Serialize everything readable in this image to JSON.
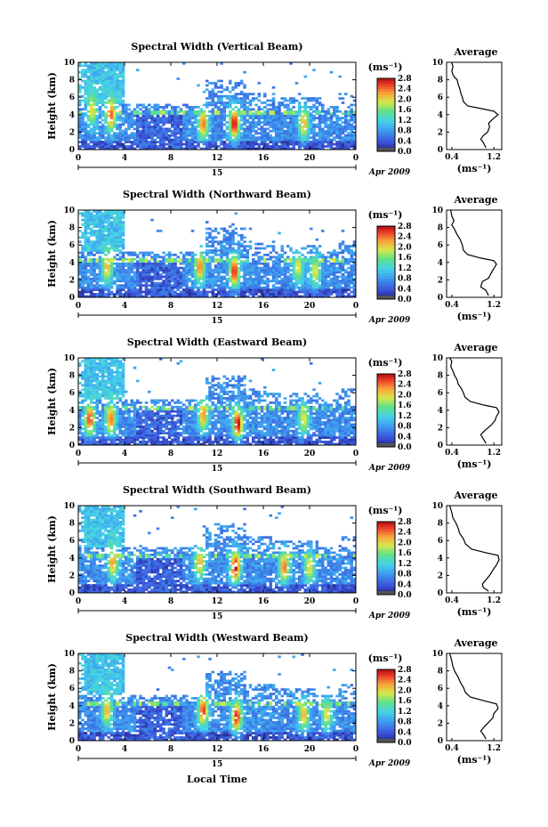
{
  "figure": {
    "xlabel": "Local Time",
    "date_label": "Apr 2009",
    "day_label": "15",
    "avg_title": "Average",
    "avg_xlabel": "(ms⁻¹)",
    "colorbar_unit": "(ms⁻¹)",
    "ylabel": "Height (km)"
  },
  "chart_data": [
    {
      "type": "heatmap",
      "title": "Spectral Width (Vertical Beam)",
      "xlabel": "Local Time",
      "ylabel": "Height (km)",
      "xlim": [
        0,
        24
      ],
      "ylim": [
        0,
        10
      ],
      "x_ticks": [
        "0",
        "4",
        "8",
        "12",
        "16",
        "20",
        "0"
      ],
      "y_ticks": [
        "0",
        "2",
        "4",
        "6",
        "8",
        "10"
      ],
      "colorbar": {
        "unit": "(ms⁻¹)",
        "range": [
          0.0,
          2.8
        ],
        "ticks": [
          "0.0",
          "0.4",
          "0.8",
          "1.2",
          "1.6",
          "2.0",
          "2.4",
          "2.8"
        ]
      },
      "hot_cores": [
        {
          "t": 2.8,
          "h": 4.0,
          "v": 2.5
        },
        {
          "t": 10.8,
          "h": 3.0,
          "v": 2.4
        },
        {
          "t": 13.5,
          "h": 3.0,
          "v": 2.8
        },
        {
          "t": 19.5,
          "h": 3.0,
          "v": 2.2
        },
        {
          "t": 1.2,
          "h": 4.5,
          "v": 2.0
        }
      ],
      "average_profile": {
        "title": "Average",
        "xlabel": "(ms⁻¹)",
        "x_ticks": [
          "0.4",
          "1.2"
        ],
        "xlim": [
          0.3,
          1.35
        ],
        "points": [
          [
            1.05,
            0.2
          ],
          [
            1.0,
            0.8
          ],
          [
            0.95,
            1.2
          ],
          [
            1.0,
            1.6
          ],
          [
            1.08,
            2.0
          ],
          [
            1.12,
            2.6
          ],
          [
            1.1,
            3.0
          ],
          [
            1.18,
            3.5
          ],
          [
            1.28,
            4.0
          ],
          [
            1.2,
            4.4
          ],
          [
            0.95,
            4.7
          ],
          [
            0.7,
            5.0
          ],
          [
            0.62,
            5.5
          ],
          [
            0.6,
            6.0
          ],
          [
            0.57,
            6.5
          ],
          [
            0.55,
            7.0
          ],
          [
            0.52,
            7.5
          ],
          [
            0.5,
            8.0
          ],
          [
            0.45,
            8.3
          ],
          [
            0.42,
            8.6
          ],
          [
            0.4,
            9.0
          ],
          [
            0.42,
            9.5
          ],
          [
            0.4,
            10.0
          ]
        ]
      }
    },
    {
      "type": "heatmap",
      "title": "Spectral Width (Northward Beam)",
      "xlabel": "Local Time",
      "ylabel": "Height (km)",
      "xlim": [
        0,
        24
      ],
      "ylim": [
        0,
        10
      ],
      "x_ticks": [
        "0",
        "4",
        "8",
        "12",
        "16",
        "20",
        "0"
      ],
      "y_ticks": [
        "0",
        "2",
        "4",
        "6",
        "8",
        "10"
      ],
      "colorbar": {
        "unit": "(ms⁻¹)",
        "range": [
          0.0,
          2.8
        ],
        "ticks": [
          "0.0",
          "0.4",
          "0.8",
          "1.2",
          "1.6",
          "2.0",
          "2.4",
          "2.8"
        ]
      },
      "hot_cores": [
        {
          "t": 2.5,
          "h": 3.5,
          "v": 2.2
        },
        {
          "t": 10.5,
          "h": 3.5,
          "v": 2.4
        },
        {
          "t": 13.5,
          "h": 3.0,
          "v": 2.7
        },
        {
          "t": 19.0,
          "h": 3.5,
          "v": 2.0
        },
        {
          "t": 20.5,
          "h": 3.0,
          "v": 2.0
        }
      ],
      "average_profile": {
        "title": "Average",
        "xlabel": "(ms⁻¹)",
        "x_ticks": [
          "0.4",
          "1.2"
        ],
        "xlim": [
          0.3,
          1.35
        ],
        "points": [
          [
            1.1,
            0.2
          ],
          [
            1.05,
            0.8
          ],
          [
            0.95,
            1.2
          ],
          [
            0.98,
            1.8
          ],
          [
            1.1,
            2.2
          ],
          [
            1.15,
            2.8
          ],
          [
            1.2,
            3.3
          ],
          [
            1.25,
            3.8
          ],
          [
            1.2,
            4.2
          ],
          [
            0.95,
            4.5
          ],
          [
            0.7,
            4.9
          ],
          [
            0.62,
            5.4
          ],
          [
            0.6,
            6.0
          ],
          [
            0.56,
            6.6
          ],
          [
            0.5,
            7.2
          ],
          [
            0.45,
            7.8
          ],
          [
            0.4,
            8.3
          ],
          [
            0.44,
            8.8
          ],
          [
            0.4,
            9.3
          ],
          [
            0.38,
            10.0
          ]
        ]
      }
    },
    {
      "type": "heatmap",
      "title": "Spectral Width (Eastward Beam)",
      "xlabel": "Local Time",
      "ylabel": "Height (km)",
      "xlim": [
        0,
        24
      ],
      "ylim": [
        0,
        10
      ],
      "x_ticks": [
        "0",
        "4",
        "8",
        "12",
        "16",
        "20",
        "0"
      ],
      "y_ticks": [
        "0",
        "2",
        "4",
        "6",
        "8",
        "10"
      ],
      "colorbar": {
        "unit": "(ms⁻¹)",
        "range": [
          0.0,
          2.8
        ],
        "ticks": [
          "0.0",
          "0.4",
          "0.8",
          "1.2",
          "1.6",
          "2.0",
          "2.4",
          "2.8"
        ]
      },
      "hot_cores": [
        {
          "t": 1.0,
          "h": 3.0,
          "v": 2.6
        },
        {
          "t": 2.8,
          "h": 3.0,
          "v": 2.4
        },
        {
          "t": 10.8,
          "h": 3.5,
          "v": 2.3
        },
        {
          "t": 13.8,
          "h": 2.5,
          "v": 2.8
        },
        {
          "t": 19.5,
          "h": 3.0,
          "v": 2.0
        }
      ],
      "average_profile": {
        "title": "Average",
        "xlabel": "(ms⁻¹)",
        "x_ticks": [
          "0.4",
          "1.2"
        ],
        "xlim": [
          0.3,
          1.35
        ],
        "points": [
          [
            1.05,
            0.2
          ],
          [
            1.0,
            0.7
          ],
          [
            0.95,
            1.2
          ],
          [
            1.05,
            1.8
          ],
          [
            1.15,
            2.3
          ],
          [
            1.22,
            2.8
          ],
          [
            1.25,
            3.3
          ],
          [
            1.3,
            3.8
          ],
          [
            1.25,
            4.3
          ],
          [
            1.0,
            4.6
          ],
          [
            0.75,
            5.0
          ],
          [
            0.65,
            5.5
          ],
          [
            0.62,
            6.0
          ],
          [
            0.58,
            6.5
          ],
          [
            0.52,
            7.0
          ],
          [
            0.5,
            7.5
          ],
          [
            0.45,
            8.0
          ],
          [
            0.42,
            8.5
          ],
          [
            0.38,
            9.0
          ],
          [
            0.4,
            9.6
          ],
          [
            0.36,
            10.0
          ]
        ]
      }
    },
    {
      "type": "heatmap",
      "title": "Spectral Width (Southward Beam)",
      "xlabel": "Local Time",
      "ylabel": "Height (km)",
      "xlim": [
        0,
        24
      ],
      "ylim": [
        0,
        10
      ],
      "x_ticks": [
        "0",
        "4",
        "8",
        "12",
        "16",
        "20",
        "0"
      ],
      "y_ticks": [
        "0",
        "2",
        "4",
        "6",
        "8",
        "10"
      ],
      "colorbar": {
        "unit": "(ms⁻¹)",
        "range": [
          0.0,
          2.8
        ],
        "ticks": [
          "0.0",
          "0.4",
          "0.8",
          "1.2",
          "1.6",
          "2.0",
          "2.4",
          "2.8"
        ]
      },
      "hot_cores": [
        {
          "t": 3.0,
          "h": 3.5,
          "v": 2.3
        },
        {
          "t": 10.5,
          "h": 3.5,
          "v": 2.2
        },
        {
          "t": 13.6,
          "h": 3.0,
          "v": 2.8
        },
        {
          "t": 17.8,
          "h": 3.0,
          "v": 2.4
        },
        {
          "t": 20.0,
          "h": 3.0,
          "v": 2.1
        }
      ],
      "average_profile": {
        "title": "Average",
        "xlabel": "(ms⁻¹)",
        "x_ticks": [
          "0.4",
          "1.2"
        ],
        "xlim": [
          0.3,
          1.35
        ],
        "points": [
          [
            1.1,
            0.2
          ],
          [
            1.0,
            0.6
          ],
          [
            0.98,
            1.0
          ],
          [
            1.05,
            1.5
          ],
          [
            1.12,
            2.0
          ],
          [
            1.18,
            2.6
          ],
          [
            1.25,
            3.2
          ],
          [
            1.3,
            3.8
          ],
          [
            1.28,
            4.3
          ],
          [
            1.05,
            4.6
          ],
          [
            0.78,
            5.0
          ],
          [
            0.66,
            5.6
          ],
          [
            0.62,
            6.2
          ],
          [
            0.55,
            6.8
          ],
          [
            0.52,
            7.4
          ],
          [
            0.48,
            8.0
          ],
          [
            0.42,
            8.6
          ],
          [
            0.4,
            9.2
          ],
          [
            0.36,
            10.0
          ]
        ]
      }
    },
    {
      "type": "heatmap",
      "title": "Spectral Width (Westward Beam)",
      "xlabel": "Local Time",
      "ylabel": "Height (km)",
      "xlim": [
        0,
        24
      ],
      "ylim": [
        0,
        10
      ],
      "x_ticks": [
        "0",
        "4",
        "8",
        "12",
        "16",
        "20",
        "0"
      ],
      "y_ticks": [
        "0",
        "2",
        "4",
        "6",
        "8",
        "10"
      ],
      "colorbar": {
        "unit": "(ms⁻¹)",
        "range": [
          0.0,
          2.8
        ],
        "ticks": [
          "0.0",
          "0.4",
          "0.8",
          "1.2",
          "1.6",
          "2.0",
          "2.4",
          "2.8"
        ]
      },
      "hot_cores": [
        {
          "t": 2.5,
          "h": 3.5,
          "v": 2.2
        },
        {
          "t": 10.8,
          "h": 3.5,
          "v": 2.6
        },
        {
          "t": 13.7,
          "h": 2.8,
          "v": 2.7
        },
        {
          "t": 19.5,
          "h": 3.0,
          "v": 2.2
        },
        {
          "t": 21.5,
          "h": 3.0,
          "v": 2.0
        }
      ],
      "average_profile": {
        "title": "Average",
        "xlabel": "(ms⁻¹)",
        "x_ticks": [
          "0.4",
          "1.2"
        ],
        "xlim": [
          0.3,
          1.35
        ],
        "points": [
          [
            1.05,
            0.2
          ],
          [
            1.0,
            0.7
          ],
          [
            0.95,
            1.1
          ],
          [
            1.02,
            1.6
          ],
          [
            1.1,
            2.1
          ],
          [
            1.18,
            2.6
          ],
          [
            1.2,
            3.1
          ],
          [
            1.28,
            3.7
          ],
          [
            1.25,
            4.2
          ],
          [
            1.0,
            4.6
          ],
          [
            0.75,
            5.0
          ],
          [
            0.66,
            5.5
          ],
          [
            0.62,
            6.1
          ],
          [
            0.56,
            6.7
          ],
          [
            0.52,
            7.3
          ],
          [
            0.46,
            7.9
          ],
          [
            0.42,
            8.5
          ],
          [
            0.4,
            9.1
          ],
          [
            0.38,
            9.6
          ],
          [
            0.36,
            10.0
          ]
        ]
      }
    }
  ]
}
